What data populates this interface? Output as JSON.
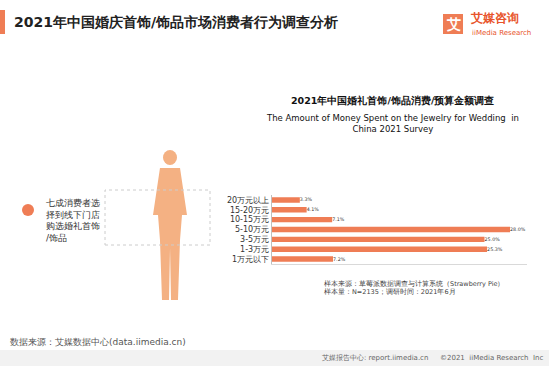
{
  "header": {
    "title": "2021年中国婚庆首饰/饰品市场消费者行为调查分析",
    "logo_icon": "艾",
    "logo_name": "艾媒咨询",
    "logo_sub": "iiMedia Research"
  },
  "side_note": "七成消费者选择到线下门店购选婚礼首饰/饰品",
  "chart_data": {
    "type": "bar",
    "orientation": "horizontal",
    "title": "2021年中国婚礼首饰/饰品消费/预算金额调查",
    "subtitle": [
      "The Amount of Money Spent on the Jewelry for Wedding  in",
      "China 2021 Survey"
    ],
    "categories": [
      "20万元以上",
      "15-20万元",
      "10-15万元",
      "5-10万元",
      "3-5万元",
      "1-3万元",
      "1万元以下"
    ],
    "values": [
      3.3,
      4.1,
      7.1,
      28.0,
      25.0,
      25.3,
      7.2
    ],
    "value_labels": [
      "3.3%",
      "4.1%",
      "7.1%",
      "28.0%",
      "25.0%",
      "25.3%",
      "7.2%"
    ],
    "color": "#ef7d55",
    "xlim": [
      0,
      30
    ],
    "grid": false,
    "data_labels": true,
    "tick_labels": "y",
    "annotations": [
      "样本来源：草莓派数据调查与计算系统（Strawberry Pie）",
      "样本量：N=2135；调研时间：2021年6月"
    ]
  },
  "source": "数据来源：艾媒数据中心(data.iimedia.cn)",
  "footer": {
    "left": "艾媒报告中心: report.iimedia.cn",
    "right": "©2021  iiMedia Research  Inc"
  }
}
